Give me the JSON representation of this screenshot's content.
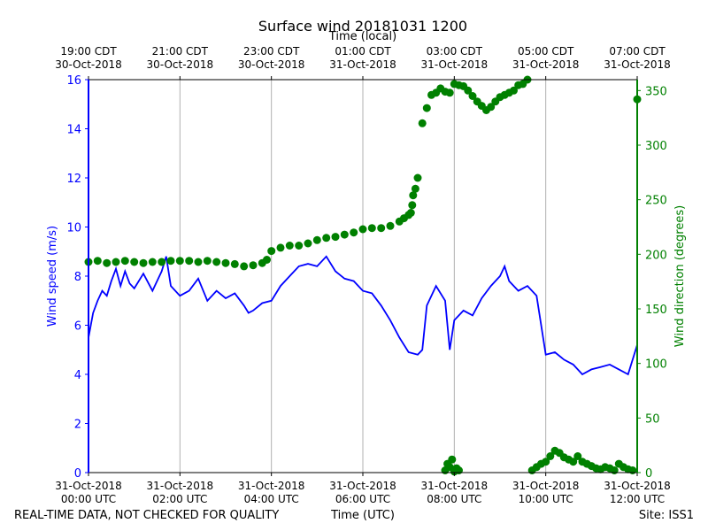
{
  "chart_data": {
    "type": "line",
    "title": "Surface wind 20181031 1200",
    "top_axis_label": "Time (local)",
    "xlabel": "Time (UTC)",
    "ylabel_left": "Wind speed (m/s)",
    "ylabel_right": "Wind direction (degrees)",
    "footer_left": "REAL-TIME DATA, NOT CHECKED FOR QUALITY",
    "footer_right": "Site: ISS1",
    "colors": {
      "speed": "#0000ff",
      "direction": "#008000",
      "grid": "#b0b0b0"
    },
    "grid": true,
    "x_unit": "hours UTC since 31-Oct-2018 00:00",
    "xlim": [
      0,
      12
    ],
    "ylim_left": [
      0,
      16
    ],
    "ylim_right": [
      0,
      360
    ],
    "yticks_left": [
      0,
      2,
      4,
      6,
      8,
      10,
      12,
      14,
      16
    ],
    "yticks_right": [
      0,
      50,
      100,
      150,
      200,
      250,
      300,
      350
    ],
    "bottom_ticks": [
      {
        "x": 0,
        "line1": "31-Oct-2018",
        "line2": "00:00 UTC"
      },
      {
        "x": 2,
        "line1": "31-Oct-2018",
        "line2": "02:00 UTC"
      },
      {
        "x": 4,
        "line1": "31-Oct-2018",
        "line2": "04:00 UTC"
      },
      {
        "x": 6,
        "line1": "31-Oct-2018",
        "line2": "06:00 UTC"
      },
      {
        "x": 8,
        "line1": "31-Oct-2018",
        "line2": "08:00 UTC"
      },
      {
        "x": 10,
        "line1": "31-Oct-2018",
        "line2": "10:00 UTC"
      },
      {
        "x": 12,
        "line1": "31-Oct-2018",
        "line2": "12:00 UTC"
      }
    ],
    "top_ticks": [
      {
        "x": 0,
        "line1": "19:00 CDT",
        "line2": "30-Oct-2018"
      },
      {
        "x": 2,
        "line1": "21:00 CDT",
        "line2": "30-Oct-2018"
      },
      {
        "x": 4,
        "line1": "23:00 CDT",
        "line2": "30-Oct-2018"
      },
      {
        "x": 6,
        "line1": "01:00 CDT",
        "line2": "31-Oct-2018"
      },
      {
        "x": 8,
        "line1": "03:00 CDT",
        "line2": "31-Oct-2018"
      },
      {
        "x": 10,
        "line1": "05:00 CDT",
        "line2": "31-Oct-2018"
      },
      {
        "x": 12,
        "line1": "07:00 CDT",
        "line2": "31-Oct-2018"
      }
    ],
    "series": [
      {
        "name": "Wind speed",
        "axis": "left",
        "style": "line",
        "x": [
          0.0,
          0.1,
          0.2,
          0.3,
          0.4,
          0.5,
          0.6,
          0.7,
          0.8,
          0.9,
          1.0,
          1.2,
          1.4,
          1.6,
          1.7,
          1.8,
          2.0,
          2.2,
          2.4,
          2.6,
          2.8,
          3.0,
          3.2,
          3.4,
          3.5,
          3.6,
          3.8,
          4.0,
          4.2,
          4.4,
          4.6,
          4.8,
          5.0,
          5.2,
          5.4,
          5.6,
          5.8,
          6.0,
          6.2,
          6.4,
          6.6,
          6.8,
          7.0,
          7.2,
          7.3,
          7.4,
          7.6,
          7.8,
          7.9,
          8.0,
          8.2,
          8.4,
          8.6,
          8.8,
          9.0,
          9.1,
          9.2,
          9.4,
          9.6,
          9.8,
          10.0,
          10.2,
          10.4,
          10.6,
          10.8,
          11.0,
          11.2,
          11.4,
          11.6,
          11.8,
          12.0
        ],
        "values": [
          5.5,
          6.5,
          7.0,
          7.4,
          7.2,
          7.8,
          8.3,
          7.6,
          8.2,
          7.7,
          7.5,
          8.1,
          7.4,
          8.2,
          8.8,
          7.6,
          7.2,
          7.4,
          7.9,
          7.0,
          7.4,
          7.1,
          7.3,
          6.8,
          6.5,
          6.6,
          6.9,
          7.0,
          7.6,
          8.0,
          8.4,
          8.5,
          8.4,
          8.8,
          8.2,
          7.9,
          7.8,
          7.4,
          7.3,
          6.8,
          6.2,
          5.5,
          4.9,
          4.8,
          5.0,
          6.8,
          7.6,
          7.0,
          5.0,
          6.2,
          6.6,
          6.4,
          7.1,
          7.6,
          8.0,
          8.4,
          7.8,
          7.4,
          7.6,
          7.2,
          4.8,
          4.9,
          4.6,
          4.4,
          4.0,
          4.2,
          4.3,
          4.4,
          4.2,
          4.0,
          5.2
        ]
      },
      {
        "name": "Wind direction",
        "axis": "right",
        "style": "dots",
        "x": [
          0.0,
          0.2,
          0.4,
          0.6,
          0.8,
          1.0,
          1.2,
          1.4,
          1.6,
          1.8,
          2.0,
          2.2,
          2.4,
          2.6,
          2.8,
          3.0,
          3.2,
          3.4,
          3.6,
          3.8,
          3.9,
          4.0,
          4.2,
          4.4,
          4.6,
          4.8,
          5.0,
          5.2,
          5.4,
          5.6,
          5.8,
          6.0,
          6.2,
          6.4,
          6.6,
          6.8,
          6.9,
          7.0,
          7.05,
          7.08,
          7.1,
          7.15,
          7.2,
          7.3,
          7.4,
          7.5,
          7.6,
          7.7,
          7.8,
          7.9,
          8.0,
          8.1,
          8.2,
          8.3,
          8.4,
          8.5,
          8.6,
          8.7,
          8.8,
          8.9,
          9.0,
          9.1,
          9.2,
          9.3,
          9.4,
          9.5,
          9.6,
          9.7,
          9.8,
          9.9,
          10.0,
          10.1,
          10.2,
          10.3,
          10.4,
          10.5,
          10.6,
          10.7,
          10.8,
          10.9,
          11.0,
          11.1,
          11.2,
          11.3,
          11.4,
          11.5,
          11.6,
          11.7,
          11.8,
          11.9,
          12.0
        ],
        "values": [
          193,
          194,
          192,
          193,
          194,
          193,
          192,
          193,
          193,
          194,
          194,
          194,
          193,
          194,
          193,
          192,
          191,
          189,
          190,
          192,
          195,
          203,
          206,
          208,
          208,
          210,
          213,
          215,
          216,
          218,
          220,
          223,
          224,
          224,
          226,
          230,
          233,
          236,
          238,
          245,
          254,
          260,
          270,
          320,
          334,
          346,
          348,
          352,
          349,
          348,
          356,
          355,
          354,
          350,
          345,
          340,
          336,
          332,
          335,
          340,
          344,
          346,
          348,
          350,
          355,
          356,
          360,
          2,
          5,
          8,
          10,
          15,
          20,
          18,
          14,
          12,
          10,
          15,
          10,
          8,
          6,
          4,
          3,
          5,
          4,
          2,
          8,
          5,
          3,
          2,
          342
        ]
      },
      {
        "name": "Wind direction low cluster",
        "axis": "right",
        "style": "dots",
        "x": [
          7.8,
          7.85,
          7.9,
          7.95,
          8.0,
          8.05,
          8.1
        ],
        "values": [
          2,
          8,
          5,
          12,
          1,
          4,
          2
        ]
      }
    ]
  }
}
